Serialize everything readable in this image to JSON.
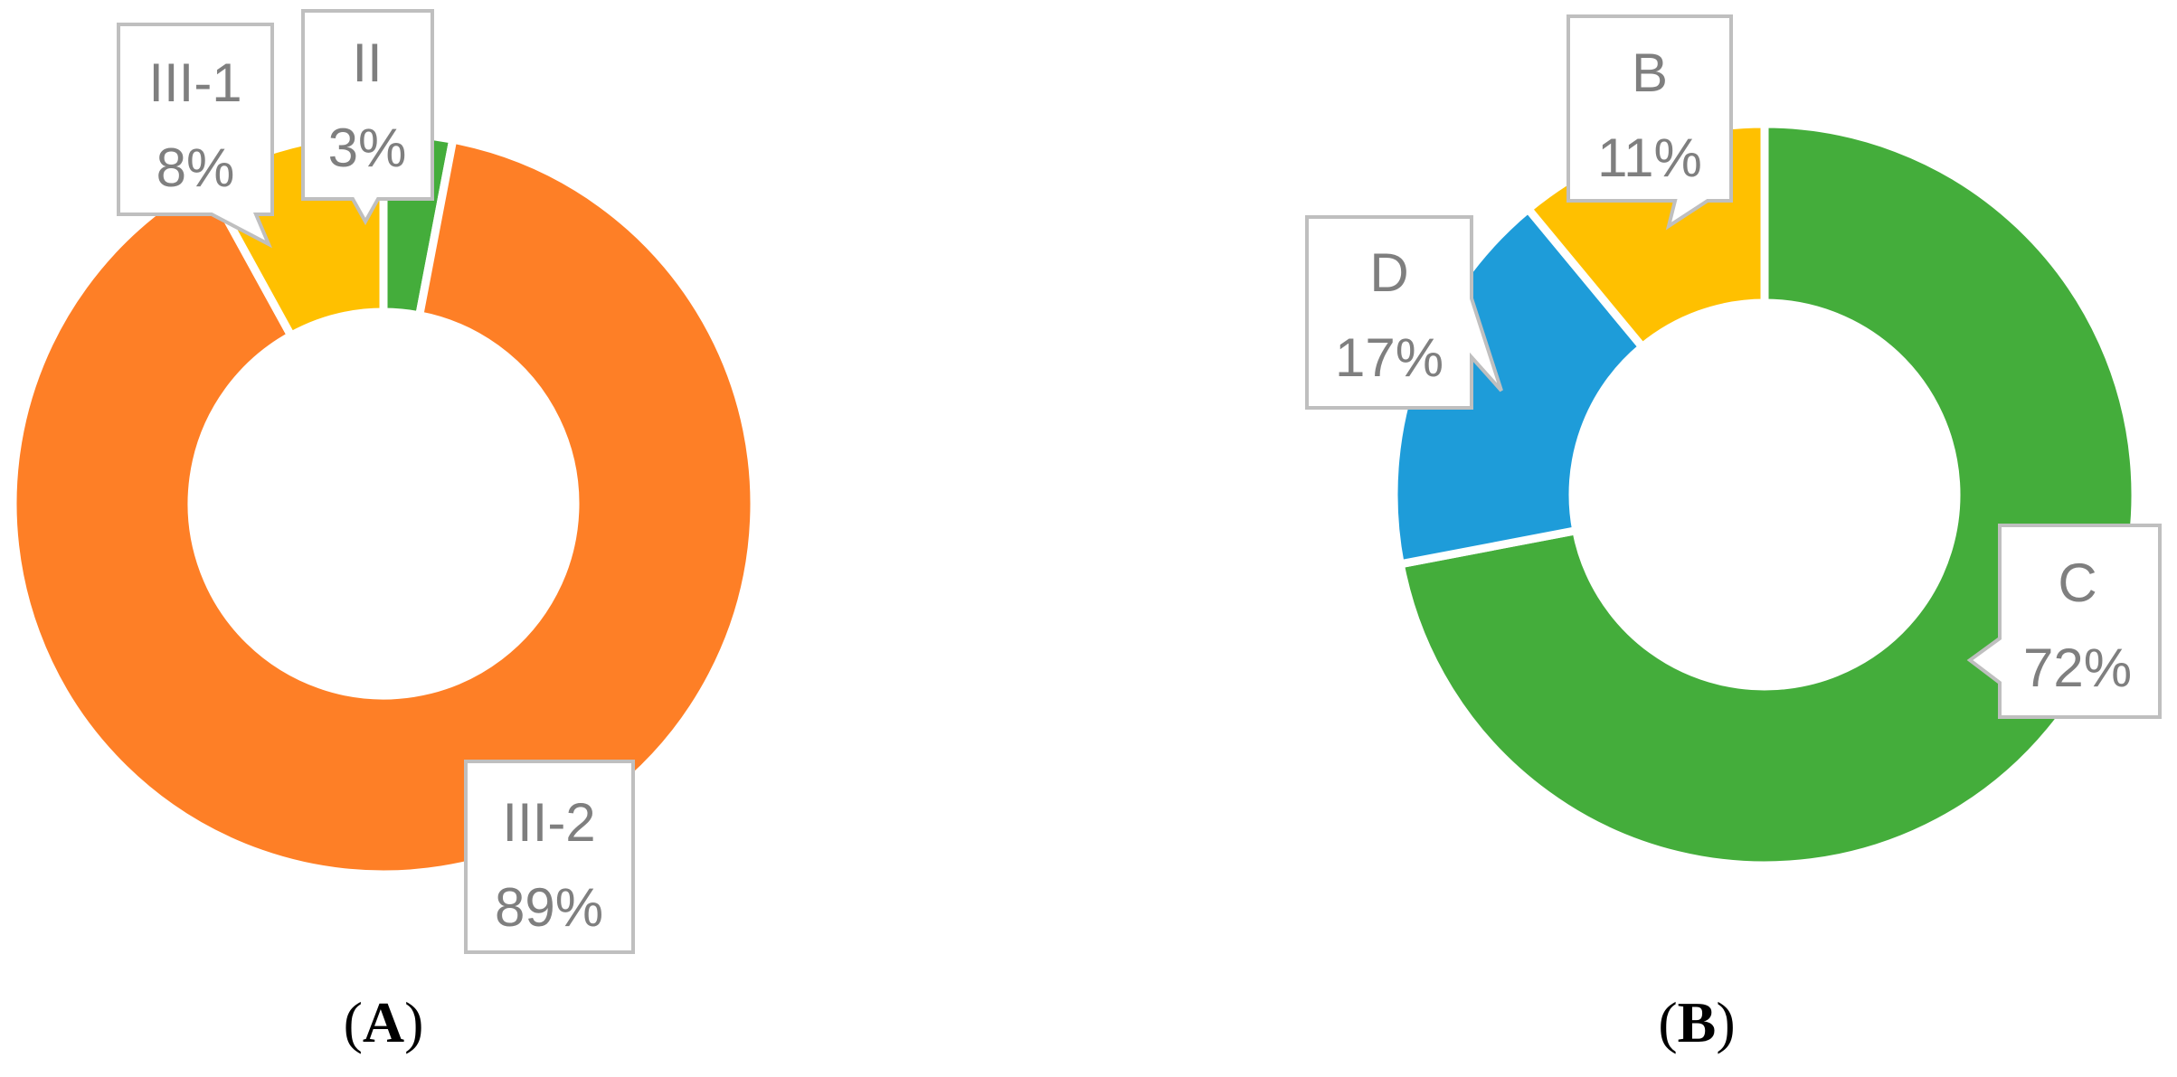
{
  "chart_data": [
    {
      "type": "pie",
      "subtype": "donut",
      "panel_label": "A",
      "slices": [
        {
          "label": "II",
          "value": 3,
          "pct_label": "3%",
          "color": "#44ad3b"
        },
        {
          "label": "III-2",
          "value": 89,
          "pct_label": "89%",
          "color": "#fe7f26"
        },
        {
          "label": "III-1",
          "value": 8,
          "pct_label": "8%",
          "color": "#ffc000"
        }
      ],
      "legend": "none",
      "data_labels": "callouts"
    },
    {
      "type": "pie",
      "subtype": "donut",
      "panel_label": "B",
      "slices": [
        {
          "label": "C",
          "value": 72,
          "pct_label": "72%",
          "color": "#44ad3b"
        },
        {
          "label": "D",
          "value": 17,
          "pct_label": "17%",
          "color": "#1e9cd9"
        },
        {
          "label": "B",
          "value": 11,
          "pct_label": "11%",
          "color": "#ffc000"
        }
      ],
      "legend": "none",
      "data_labels": "callouts"
    }
  ]
}
